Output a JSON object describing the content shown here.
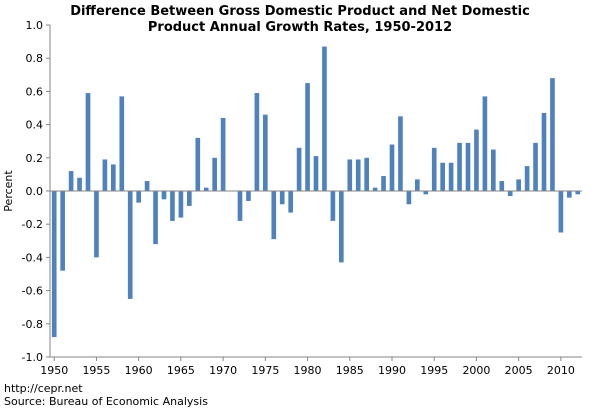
{
  "chart_data": {
    "type": "bar",
    "title": "Difference Between Gross Domestic Product and Net Domestic\nProduct Annual Growth Rates, 1950-2012",
    "xlabel": "",
    "ylabel": "Percent",
    "ylim": [
      -1.0,
      1.0
    ],
    "y_ticks": [
      "-1.0",
      "-0.8",
      "-0.6",
      "-0.4",
      "-0.2",
      "0.0",
      "0.2",
      "0.4",
      "0.6",
      "0.8",
      "1.0"
    ],
    "x_ticks": [
      "1950",
      "1955",
      "1960",
      "1965",
      "1970",
      "1975",
      "1980",
      "1985",
      "1990",
      "1995",
      "2000",
      "2005",
      "2010"
    ],
    "grid": false,
    "bar_color": "#4f81bd",
    "x": [
      1950,
      1951,
      1952,
      1953,
      1954,
      1955,
      1956,
      1957,
      1958,
      1959,
      1960,
      1961,
      1962,
      1963,
      1964,
      1965,
      1966,
      1967,
      1968,
      1969,
      1970,
      1971,
      1972,
      1973,
      1974,
      1975,
      1976,
      1977,
      1978,
      1979,
      1980,
      1981,
      1982,
      1983,
      1984,
      1985,
      1986,
      1987,
      1988,
      1989,
      1990,
      1991,
      1992,
      1993,
      1994,
      1995,
      1996,
      1997,
      1998,
      1999,
      2000,
      2001,
      2002,
      2003,
      2004,
      2005,
      2006,
      2007,
      2008,
      2009,
      2010,
      2011,
      2012
    ],
    "values": [
      -0.88,
      -0.48,
      0.12,
      0.08,
      0.59,
      -0.4,
      0.19,
      0.16,
      0.57,
      -0.65,
      -0.07,
      0.06,
      -0.32,
      -0.05,
      -0.18,
      -0.16,
      -0.09,
      0.32,
      0.02,
      0.2,
      0.44,
      0.0,
      -0.18,
      -0.06,
      0.59,
      0.46,
      -0.29,
      -0.08,
      -0.13,
      0.26,
      0.65,
      0.21,
      0.87,
      -0.18,
      -0.43,
      0.19,
      0.19,
      0.2,
      0.02,
      0.09,
      0.28,
      0.45,
      -0.08,
      0.07,
      -0.02,
      0.26,
      0.17,
      0.17,
      0.29,
      0.29,
      0.37,
      0.57,
      0.25,
      0.06,
      -0.03,
      0.07,
      0.15,
      0.29,
      0.47,
      0.68,
      -0.25,
      -0.04,
      -0.02
    ]
  },
  "footer": {
    "url": "http://cepr.net",
    "source": "Source: Bureau of Economic Analysis"
  }
}
